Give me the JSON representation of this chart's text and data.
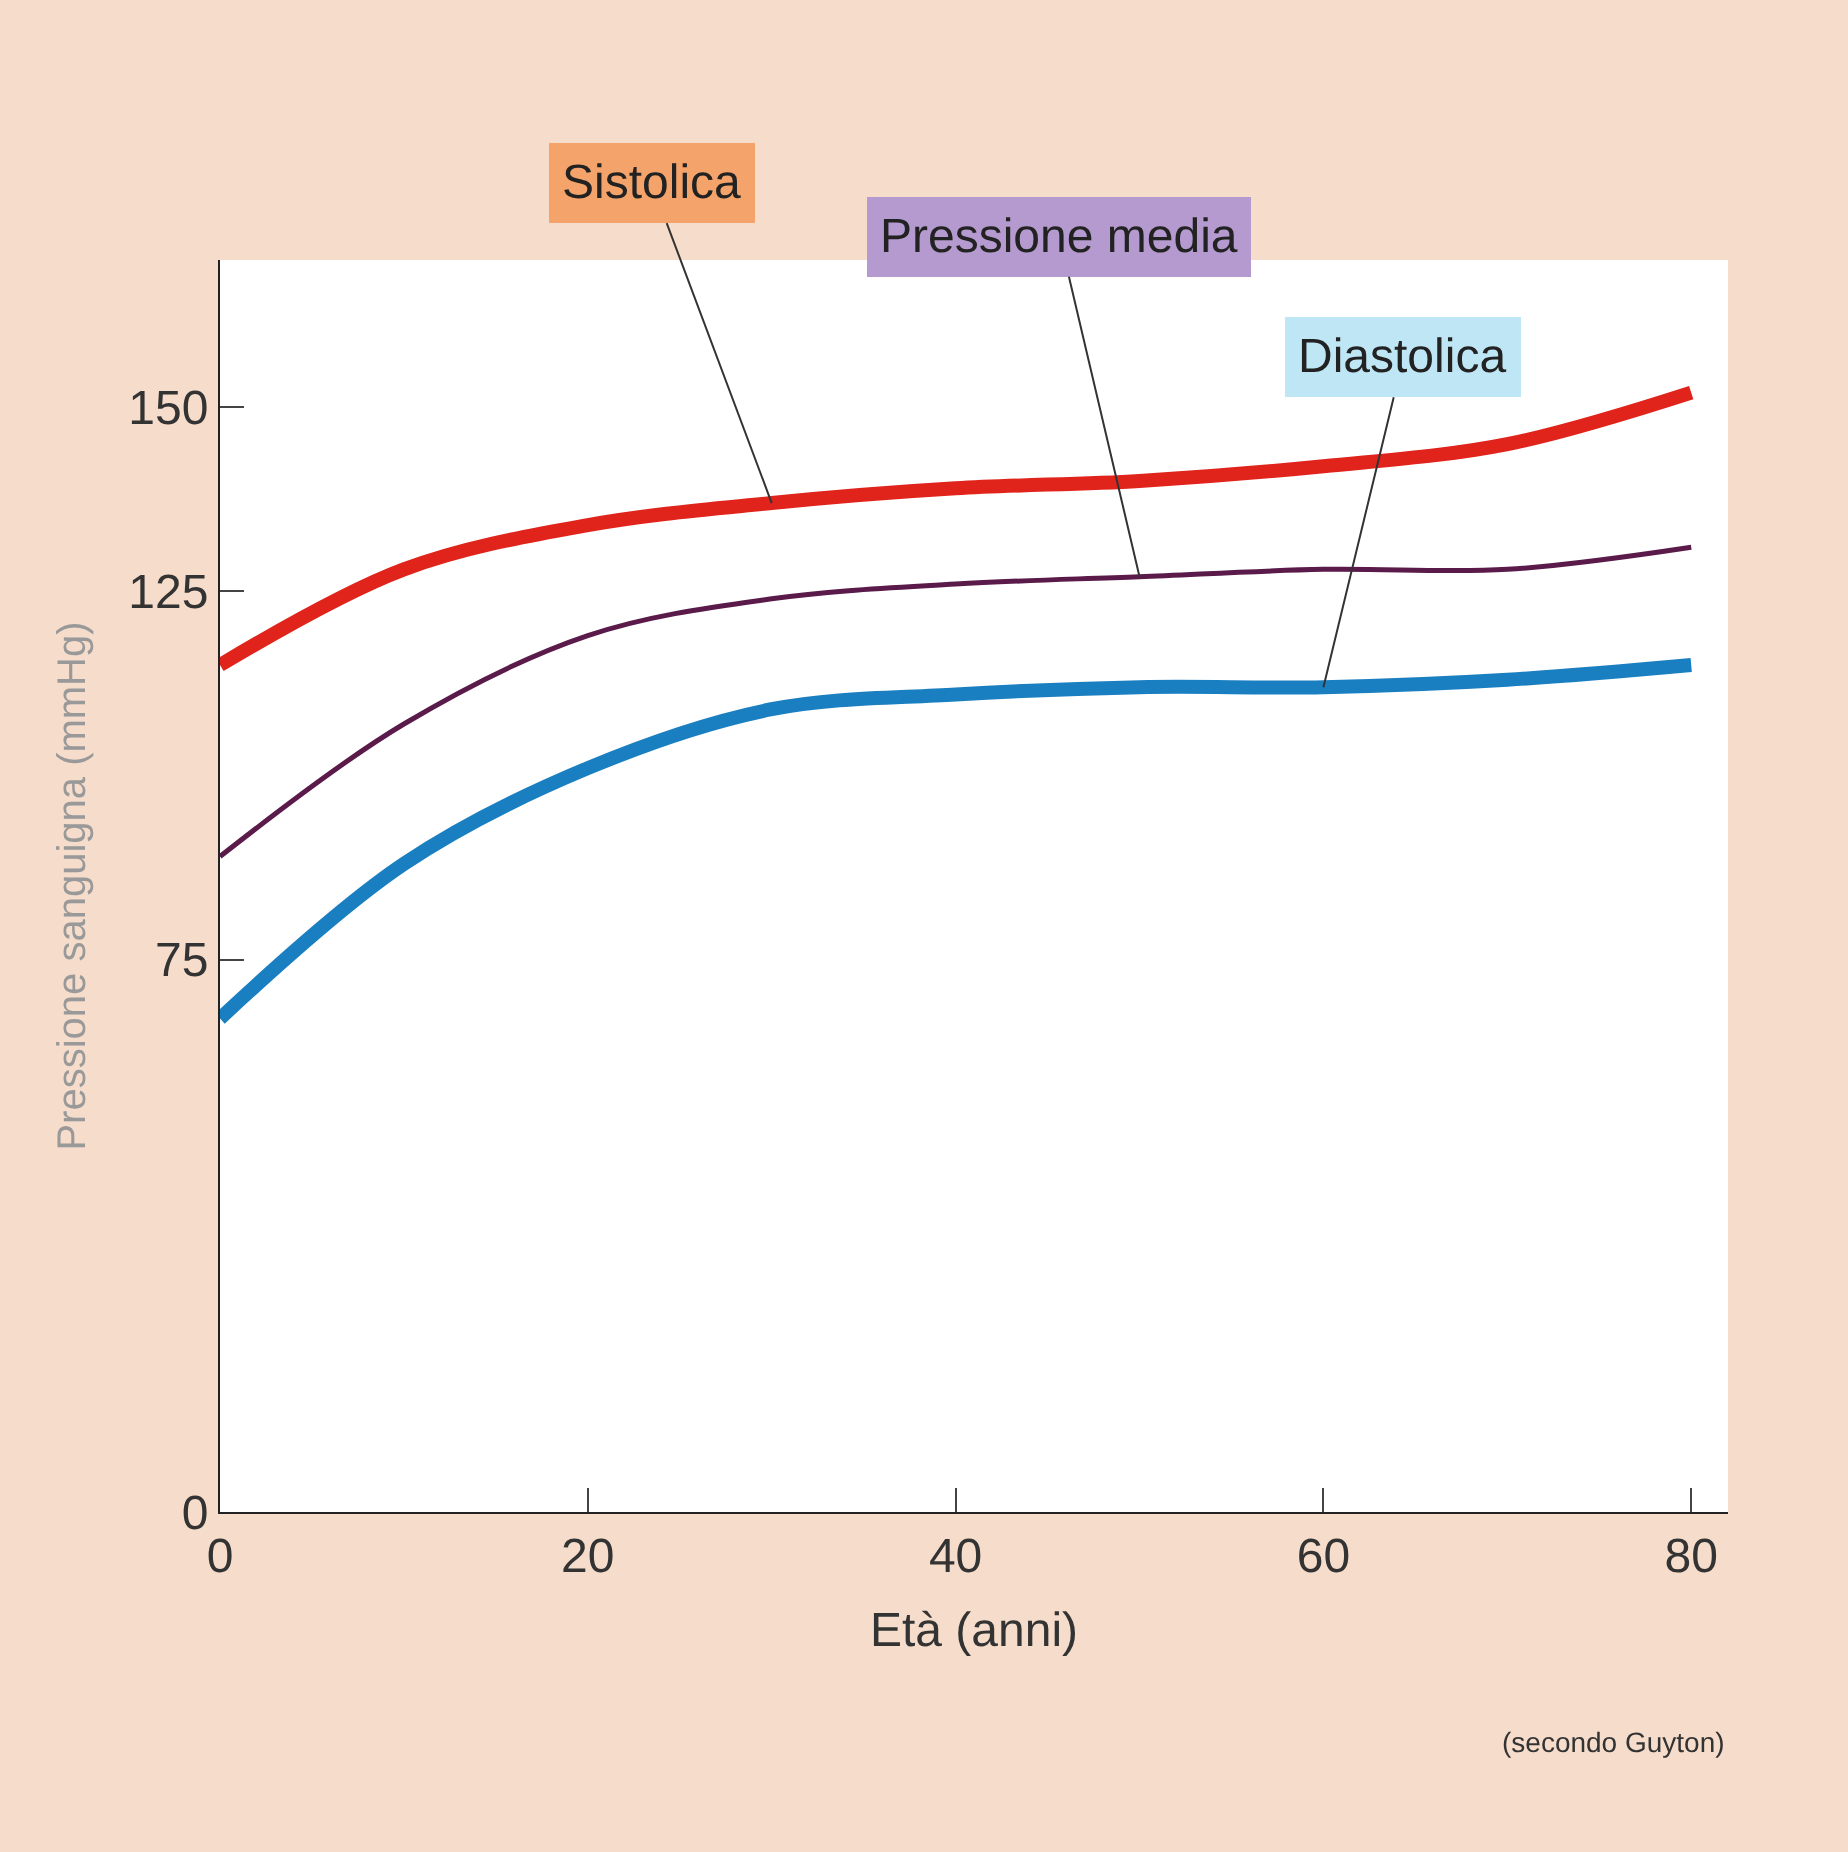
{
  "chart_data": {
    "type": "line",
    "xlabel": "Età (anni)",
    "ylabel": "Pressione sanguigna (mmHg)",
    "x": [
      0,
      10,
      20,
      30,
      40,
      50,
      60,
      70,
      80
    ],
    "series": [
      {
        "name": "Sistolica",
        "color": "#e0231b",
        "values": [
          115,
          128,
          134,
          137,
          139,
          140,
          142,
          145,
          152
        ]
      },
      {
        "name": "Pressione media",
        "color": "#5a1a4a",
        "values": [
          89,
          107,
          119,
          124,
          126,
          127,
          128,
          128,
          131
        ]
      },
      {
        "name": "Diastolica",
        "color": "#1a7fc1",
        "values": [
          67,
          88,
          101,
          109,
          111,
          112,
          112,
          113,
          115
        ]
      }
    ],
    "xlim": [
      0,
      82
    ],
    "ylim": [
      0,
      170
    ],
    "xticks": [
      0,
      20,
      40,
      60,
      80
    ],
    "yticks": [
      0,
      75,
      125,
      150
    ],
    "legend": false,
    "marker": "none",
    "annotations": [
      "(secondo Guyton)"
    ]
  }
}
